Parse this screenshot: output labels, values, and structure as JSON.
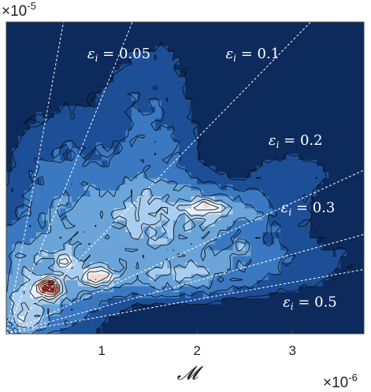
{
  "chart_data": {
    "type": "heatmap",
    "subtype": "filled-contour",
    "title": "",
    "xlabel": "𝓜",
    "ylabel": "",
    "x_multiplier": {
      "base": "×10",
      "exp": "-6"
    },
    "y_multiplier": {
      "base": "×10",
      "exp": "-5"
    },
    "xlim": [
      0,
      3.75
    ],
    "ylim": [
      0,
      3.0
    ],
    "x_ticks": [
      {
        "value": 1,
        "label": "1"
      },
      {
        "value": 2,
        "label": "2"
      },
      {
        "value": 3,
        "label": "3"
      }
    ],
    "y_ticks": [],
    "grid": false,
    "colormap": [
      "#0d2a5c",
      "#1d4f97",
      "#3a79c2",
      "#6aa4d9",
      "#a9cdee",
      "#e6f1fb",
      "#f4d6cc",
      "#dc8a7a",
      "#a62d2d",
      "#2a1010"
    ],
    "background_color": "#0d2a5c",
    "reference_lines": [
      {
        "name": "ε_i = 0.05",
        "label": "ε",
        "sub": "i",
        "rhs": " = 0.05",
        "slope": 5.0,
        "label_x": 0.85,
        "label_y": 2.65
      },
      {
        "name": "ε_i = 0.1",
        "label": "ε",
        "sub": "i",
        "rhs": " = 0.1",
        "slope": 2.27,
        "label_x": 2.3,
        "label_y": 2.65
      },
      {
        "name": "ε_i = 0.2",
        "label": "ε",
        "sub": "i",
        "rhs": " = 0.2",
        "slope": 0.94,
        "label_x": 2.75,
        "label_y": 1.82
      },
      {
        "name": "ε_i = 0.3",
        "label": "ε",
        "sub": "i",
        "rhs": " = 0.3",
        "slope": 0.42,
        "label_x": 2.88,
        "label_y": 1.17
      },
      {
        "name": "ε_i = 0.5",
        "label": "ε",
        "sub": "i",
        "rhs": " = 0.5",
        "slope": 0.165,
        "label_x": 2.9,
        "label_y": 0.26
      },
      {
        "name": "",
        "label": "",
        "sub": "",
        "rhs": "",
        "slope": 0.255,
        "label_x": null,
        "label_y": null
      }
    ],
    "density_sources": [
      {
        "x": 0.35,
        "y": 0.5,
        "sx": 0.45,
        "sy": 0.35,
        "w": 1.1
      },
      {
        "x": 0.45,
        "y": 0.45,
        "sx": 0.07,
        "sy": 0.05,
        "w": 6.2
      },
      {
        "x": 0.95,
        "y": 0.55,
        "sx": 0.1,
        "sy": 0.05,
        "w": 3.2
      },
      {
        "x": 0.62,
        "y": 0.71,
        "sx": 0.06,
        "sy": 0.05,
        "w": 2.3
      },
      {
        "x": 2.1,
        "y": 1.18,
        "sx": 0.55,
        "sy": 0.16,
        "w": 1.0
      },
      {
        "x": 2.1,
        "y": 1.22,
        "sx": 0.14,
        "sy": 0.04,
        "w": 2.2
      },
      {
        "x": 1.3,
        "y": 1.1,
        "sx": 0.5,
        "sy": 0.35,
        "w": 0.85
      },
      {
        "x": 1.5,
        "y": 2.0,
        "sx": 0.35,
        "sy": 0.55,
        "w": 0.5
      },
      {
        "x": 2.2,
        "y": 0.7,
        "sx": 0.9,
        "sy": 0.22,
        "w": 0.6
      },
      {
        "x": 0.5,
        "y": 1.5,
        "sx": 0.35,
        "sy": 0.5,
        "w": 0.45
      },
      {
        "x": 0.2,
        "y": 0.2,
        "sx": 0.12,
        "sy": 0.12,
        "w": 1.4
      },
      {
        "x": 1.8,
        "y": 0.55,
        "sx": 0.45,
        "sy": 0.12,
        "w": 0.7
      },
      {
        "x": 2.45,
        "y": 0.85,
        "sx": 0.05,
        "sy": 0.03,
        "w": 1.5
      },
      {
        "x": 3.0,
        "y": 1.55,
        "sx": 0.3,
        "sy": 0.15,
        "w": 0.35
      }
    ],
    "contour_levels": [
      0.2,
      0.45,
      0.8,
      1.3,
      1.9,
      2.7,
      3.6,
      4.6,
      5.6
    ]
  }
}
